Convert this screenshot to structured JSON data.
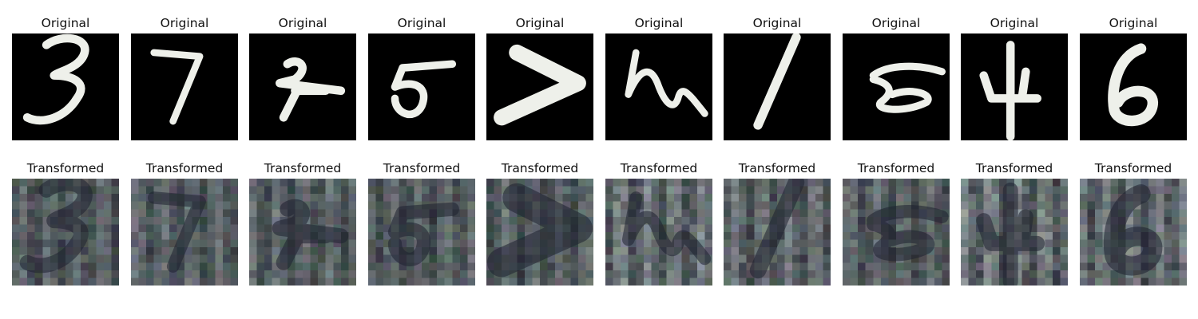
{
  "rows": [
    {
      "label": "Original",
      "cells": [
        {
          "icon": "digit-3"
        },
        {
          "icon": "digit-7"
        },
        {
          "icon": "digit-2"
        },
        {
          "icon": "digit-5"
        },
        {
          "icon": "digit-chevron"
        },
        {
          "icon": "digit-h"
        },
        {
          "icon": "digit-1"
        },
        {
          "icon": "digit-8-scribble"
        },
        {
          "icon": "digit-4"
        },
        {
          "icon": "digit-6"
        }
      ]
    },
    {
      "label": "Transformed",
      "cells": [
        {
          "icon": "transformed-noise"
        },
        {
          "icon": "transformed-noise"
        },
        {
          "icon": "transformed-noise"
        },
        {
          "icon": "transformed-noise"
        },
        {
          "icon": "transformed-noise"
        },
        {
          "icon": "transformed-noise"
        },
        {
          "icon": "transformed-noise"
        },
        {
          "icon": "transformed-noise"
        },
        {
          "icon": "transformed-noise"
        },
        {
          "icon": "transformed-noise"
        }
      ]
    }
  ],
  "colors": {
    "digit_background": "#000000",
    "digit_stroke": "#eef0ea",
    "transformed_base": "#3a3d46"
  }
}
